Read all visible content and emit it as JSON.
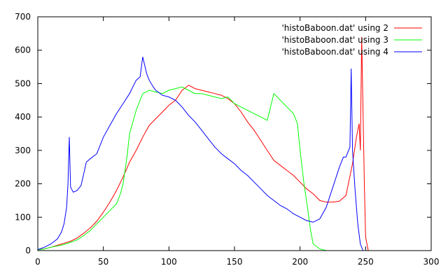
{
  "chart_data": {
    "type": "line",
    "title": "",
    "xlabel": "",
    "ylabel": "",
    "xlim": [
      0,
      300
    ],
    "ylim": [
      0,
      700
    ],
    "x_ticks": [
      0,
      50,
      100,
      150,
      200,
      250,
      300
    ],
    "y_ticks": [
      0,
      100,
      200,
      300,
      400,
      500,
      600,
      700
    ],
    "grid": false,
    "legend_position": "top-right",
    "series": [
      {
        "name": "'histoBaboon.dat' using 2",
        "color": "#ff0000",
        "points": [
          [
            0,
            3
          ],
          [
            5,
            5
          ],
          [
            10,
            10
          ],
          [
            15,
            16
          ],
          [
            20,
            22
          ],
          [
            25,
            28
          ],
          [
            30,
            38
          ],
          [
            35,
            52
          ],
          [
            40,
            68
          ],
          [
            45,
            88
          ],
          [
            50,
            115
          ],
          [
            55,
            145
          ],
          [
            60,
            180
          ],
          [
            65,
            220
          ],
          [
            70,
            265
          ],
          [
            75,
            300
          ],
          [
            80,
            340
          ],
          [
            85,
            375
          ],
          [
            90,
            395
          ],
          [
            95,
            415
          ],
          [
            100,
            435
          ],
          [
            105,
            450
          ],
          [
            110,
            480
          ],
          [
            115,
            495
          ],
          [
            120,
            485
          ],
          [
            125,
            480
          ],
          [
            130,
            475
          ],
          [
            135,
            470
          ],
          [
            140,
            465
          ],
          [
            145,
            455
          ],
          [
            150,
            440
          ],
          [
            155,
            415
          ],
          [
            160,
            385
          ],
          [
            165,
            360
          ],
          [
            170,
            330
          ],
          [
            175,
            300
          ],
          [
            180,
            270
          ],
          [
            185,
            255
          ],
          [
            190,
            240
          ],
          [
            195,
            225
          ],
          [
            200,
            205
          ],
          [
            205,
            185
          ],
          [
            210,
            170
          ],
          [
            215,
            150
          ],
          [
            220,
            145
          ],
          [
            225,
            145
          ],
          [
            230,
            148
          ],
          [
            235,
            165
          ],
          [
            240,
            260
          ],
          [
            243,
            340
          ],
          [
            245,
            380
          ],
          [
            246,
            300
          ],
          [
            247,
            640
          ],
          [
            249,
            200
          ],
          [
            250,
            40
          ],
          [
            252,
            0
          ]
        ]
      },
      {
        "name": "'histoBaboon.dat' using 3",
        "color": "#00ff00",
        "points": [
          [
            0,
            2
          ],
          [
            5,
            5
          ],
          [
            10,
            10
          ],
          [
            15,
            14
          ],
          [
            20,
            18
          ],
          [
            25,
            25
          ],
          [
            30,
            32
          ],
          [
            35,
            45
          ],
          [
            40,
            60
          ],
          [
            45,
            80
          ],
          [
            50,
            100
          ],
          [
            55,
            120
          ],
          [
            60,
            140
          ],
          [
            63,
            170
          ],
          [
            65,
            200
          ],
          [
            68,
            280
          ],
          [
            70,
            350
          ],
          [
            75,
            420
          ],
          [
            80,
            470
          ],
          [
            85,
            480
          ],
          [
            90,
            475
          ],
          [
            95,
            470
          ],
          [
            100,
            480
          ],
          [
            105,
            485
          ],
          [
            110,
            490
          ],
          [
            115,
            480
          ],
          [
            120,
            470
          ],
          [
            125,
            470
          ],
          [
            130,
            465
          ],
          [
            135,
            460
          ],
          [
            140,
            455
          ],
          [
            145,
            460
          ],
          [
            150,
            440
          ],
          [
            155,
            430
          ],
          [
            160,
            420
          ],
          [
            165,
            410
          ],
          [
            170,
            400
          ],
          [
            175,
            390
          ],
          [
            180,
            470
          ],
          [
            185,
            450
          ],
          [
            190,
            430
          ],
          [
            195,
            410
          ],
          [
            198,
            380
          ],
          [
            200,
            300
          ],
          [
            203,
            200
          ],
          [
            206,
            120
          ],
          [
            208,
            60
          ],
          [
            210,
            20
          ],
          [
            215,
            5
          ],
          [
            220,
            0
          ]
        ]
      },
      {
        "name": "'histoBaboon.dat' using 4",
        "color": "#0000ff",
        "points": [
          [
            0,
            3
          ],
          [
            5,
            10
          ],
          [
            10,
            20
          ],
          [
            15,
            35
          ],
          [
            18,
            55
          ],
          [
            20,
            80
          ],
          [
            22,
            130
          ],
          [
            23,
            200
          ],
          [
            24,
            340
          ],
          [
            25,
            190
          ],
          [
            27,
            175
          ],
          [
            30,
            180
          ],
          [
            33,
            195
          ],
          [
            35,
            230
          ],
          [
            37,
            265
          ],
          [
            40,
            275
          ],
          [
            45,
            290
          ],
          [
            50,
            340
          ],
          [
            55,
            375
          ],
          [
            60,
            410
          ],
          [
            65,
            440
          ],
          [
            70,
            470
          ],
          [
            75,
            510
          ],
          [
            78,
            520
          ],
          [
            80,
            580
          ],
          [
            83,
            530
          ],
          [
            85,
            510
          ],
          [
            88,
            490
          ],
          [
            90,
            480
          ],
          [
            95,
            465
          ],
          [
            100,
            460
          ],
          [
            105,
            450
          ],
          [
            110,
            430
          ],
          [
            115,
            405
          ],
          [
            120,
            385
          ],
          [
            125,
            360
          ],
          [
            130,
            335
          ],
          [
            135,
            310
          ],
          [
            140,
            290
          ],
          [
            145,
            275
          ],
          [
            150,
            260
          ],
          [
            155,
            240
          ],
          [
            160,
            225
          ],
          [
            165,
            205
          ],
          [
            170,
            185
          ],
          [
            175,
            165
          ],
          [
            180,
            150
          ],
          [
            185,
            135
          ],
          [
            190,
            125
          ],
          [
            195,
            110
          ],
          [
            200,
            100
          ],
          [
            205,
            90
          ],
          [
            210,
            85
          ],
          [
            215,
            95
          ],
          [
            220,
            130
          ],
          [
            225,
            190
          ],
          [
            230,
            250
          ],
          [
            233,
            280
          ],
          [
            235,
            280
          ],
          [
            238,
            310
          ],
          [
            239,
            545
          ],
          [
            240,
            300
          ],
          [
            242,
            180
          ],
          [
            244,
            80
          ],
          [
            246,
            20
          ],
          [
            248,
            0
          ]
        ]
      }
    ]
  }
}
